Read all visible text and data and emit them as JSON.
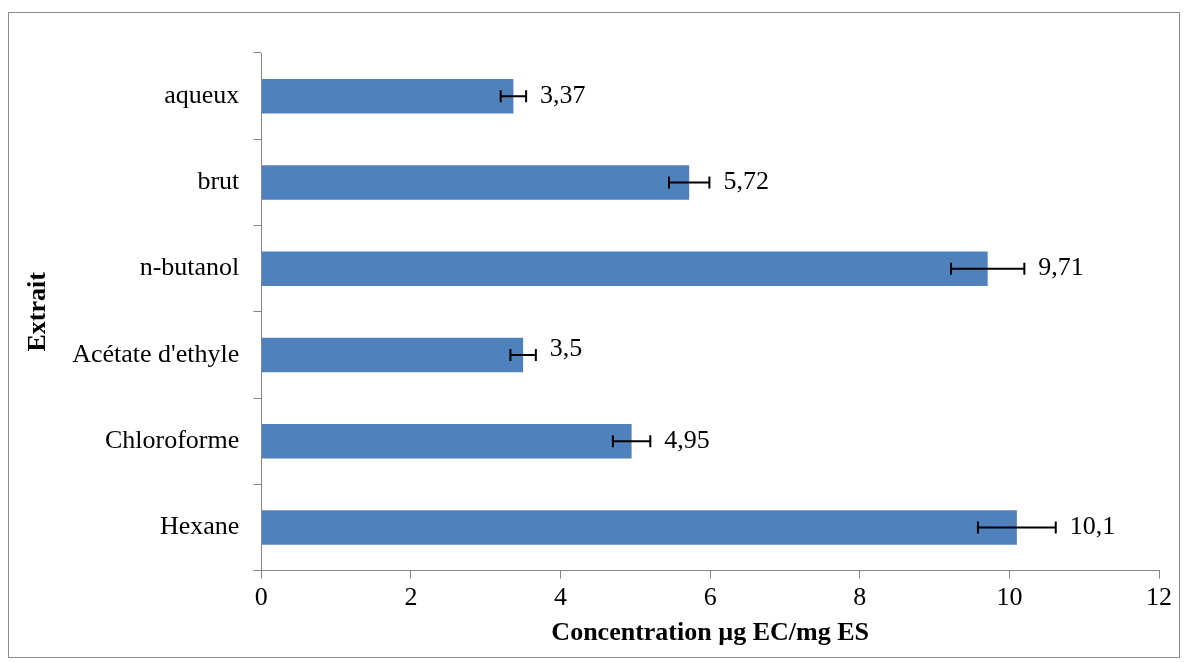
{
  "chart_data": {
    "type": "bar",
    "orientation": "horizontal",
    "xlabel": "Concentration µg EC/mg ES",
    "ylabel": "Extrait",
    "categories": [
      "aqueux",
      "brut",
      "n-butanol",
      "Acétate d'ethyle",
      "Chloroforme",
      "Hexane"
    ],
    "values": [
      3.37,
      5.72,
      9.71,
      3.5,
      4.95,
      10.1
    ],
    "errors": [
      0.17,
      0.27,
      0.49,
      0.17,
      0.25,
      0.52
    ],
    "value_labels": [
      "3,37",
      "5,72",
      "9,71",
      "3,5",
      "4,95",
      "10,1"
    ],
    "color": "#4f81bd",
    "xlim": [
      0,
      12
    ],
    "xticks": [
      0,
      2,
      4,
      6,
      8,
      10,
      12
    ]
  }
}
